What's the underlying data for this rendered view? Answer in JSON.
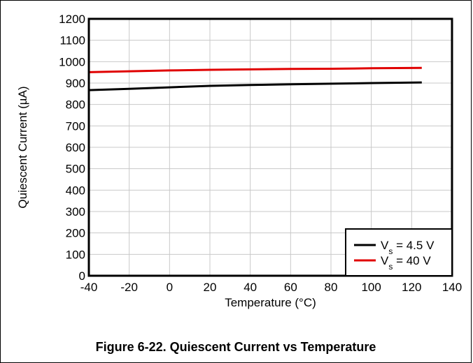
{
  "chart_data": {
    "type": "line",
    "title": "",
    "xlabel": "Temperature (°C)",
    "ylabel": "Quiescent Current (µA)",
    "xlim": [
      -40,
      140
    ],
    "ylim": [
      0,
      1200
    ],
    "xticks": [
      -40,
      -20,
      0,
      20,
      40,
      60,
      80,
      100,
      120,
      140
    ],
    "yticks": [
      0,
      100,
      200,
      300,
      400,
      500,
      600,
      700,
      800,
      900,
      1000,
      1100,
      1200
    ],
    "grid": true,
    "legend": "bottom-right",
    "series": [
      {
        "name": "Vs = 4.5 V",
        "name_main": "V",
        "name_sub": "s",
        "name_rest": " = 4.5 V",
        "color": "#000000",
        "x": [
          -40,
          -20,
          0,
          20,
          40,
          60,
          80,
          100,
          125
        ],
        "y": [
          867,
          873,
          880,
          887,
          891,
          894,
          897,
          900,
          903
        ]
      },
      {
        "name": "Vs = 40 V",
        "name_main": "V",
        "name_sub": "s",
        "name_rest": " = 40 V",
        "color": "#e00000",
        "x": [
          -40,
          -20,
          0,
          20,
          40,
          60,
          80,
          100,
          125
        ],
        "y": [
          951,
          955,
          959,
          962,
          964,
          966,
          967,
          969,
          971
        ]
      }
    ]
  },
  "caption": "Figure 6-22. Quiescent Current vs Temperature"
}
